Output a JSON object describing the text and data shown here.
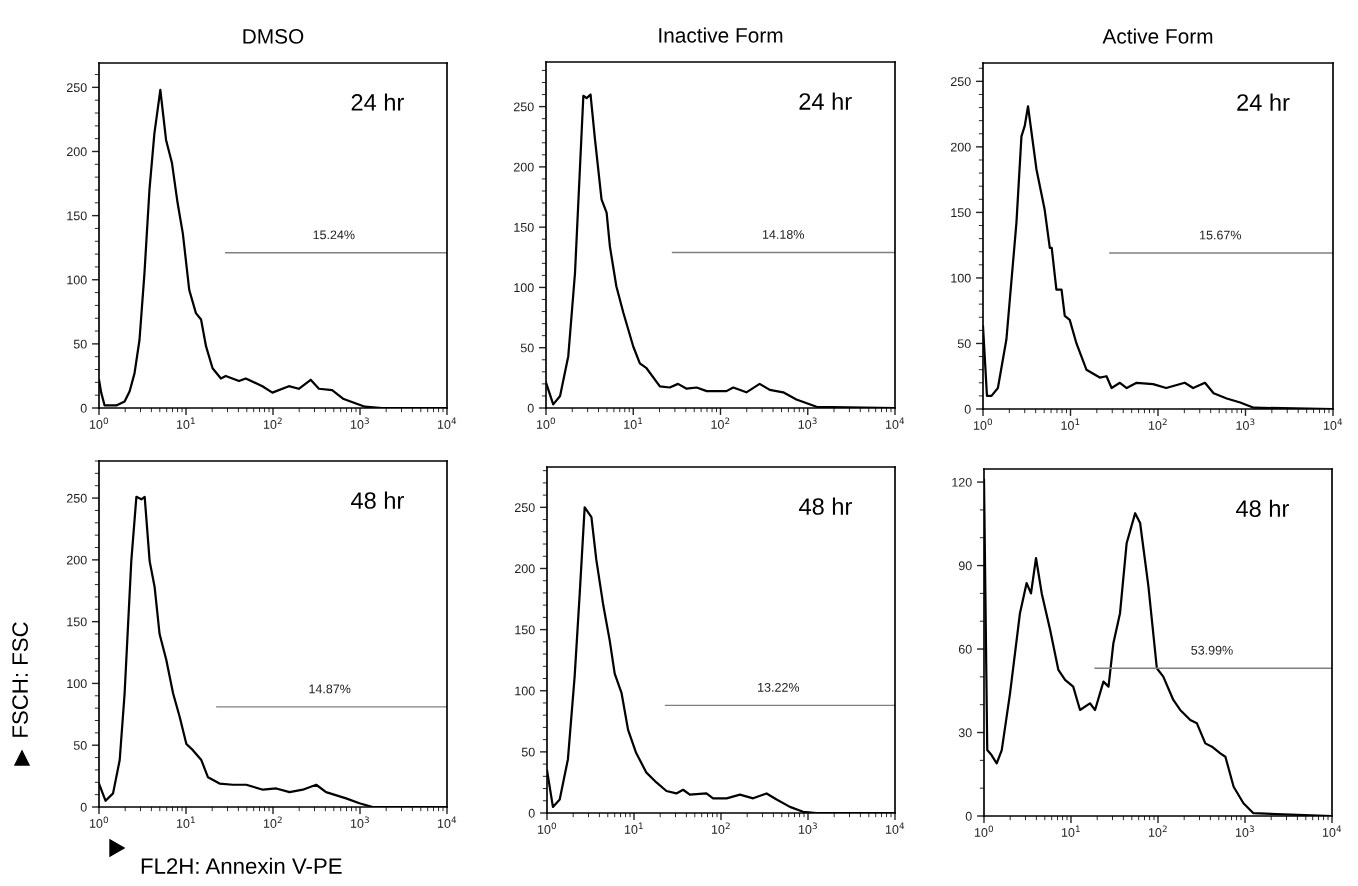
{
  "chart_data": [
    {
      "type": "line",
      "title": "DMSO",
      "log": "x",
      "xlim": [
        1,
        10000
      ],
      "xticks": [
        {
          "value": 1,
          "label": "10$^{0}$"
        },
        {
          "value": 10,
          "label": "10$^{1}$"
        },
        {
          "value": 100,
          "label": "10$^{2}$"
        },
        {
          "value": 1000,
          "label": "10$^{3}$"
        },
        {
          "value": 10000,
          "label": "10$^{4}$"
        }
      ],
      "ylim": [
        0,
        269
      ],
      "yticks": [
        0,
        50,
        100,
        150,
        200,
        250
      ],
      "grid": false,
      "series": [
        {
          "color": "#000000",
          "x": [
            1,
            1.06,
            1.16,
            1.58,
            1.97,
            2.25,
            2.56,
            2.92,
            3.33,
            3.8,
            4.33,
            5.07,
            5.9,
            6.9,
            8.0,
            9.2,
            10.9,
            13.0,
            14.9,
            17.0,
            20.2,
            25.2,
            28.6,
            40.7,
            48.6,
            75.6,
            98.4,
            152,
            198,
            271,
            337,
            478,
            649,
            1140,
            1790,
            10000
          ],
          "values": [
            22,
            12,
            2,
            2,
            5,
            13,
            27,
            53,
            105,
            170,
            214,
            248,
            209,
            191,
            160,
            136,
            92,
            74,
            69,
            48,
            31,
            23,
            25,
            21,
            23,
            17,
            12,
            17,
            15,
            22,
            15,
            14,
            7,
            1,
            0,
            0
          ]
        },
        {
          "type": "line",
          "color": "#808080",
          "x": [
            28.6,
            10000
          ],
          "values": [
            121,
            121
          ]
        }
      ],
      "annotations": [
        "24 hr",
        {
          "text": "15.24%",
          "x": 500,
          "y": 121
        }
      ]
    },
    {
      "type": "line",
      "title": "Inactive Form",
      "log": "x",
      "xlim": [
        1,
        10000
      ],
      "xticks": [
        {
          "value": 1,
          "label": "10$^{0}$"
        },
        {
          "value": 10,
          "label": "10$^{1}$"
        },
        {
          "value": 100,
          "label": "10$^{2}$"
        },
        {
          "value": 1000,
          "label": "10$^{3}$"
        },
        {
          "value": 10000,
          "label": "10$^{4}$"
        }
      ],
      "ylim": [
        0,
        287
      ],
      "yticks": [
        0,
        50,
        100,
        150,
        200,
        250
      ],
      "grid": false,
      "series": [
        {
          "color": "#000000",
          "x": [
            1,
            1.21,
            1.45,
            1.8,
            2.15,
            2.68,
            2.92,
            3.24,
            3.64,
            4.33,
            4.95,
            5.4,
            6.4,
            7.7,
            10.0,
            11.9,
            14.2,
            20.2,
            26.2,
            32.6,
            40.9,
            53.3,
            69.5,
            117,
            140,
            198,
            281,
            367,
            523,
            741,
            1260,
            10000
          ],
          "values": [
            21,
            3,
            10,
            43,
            112,
            259,
            257,
            260,
            223,
            173,
            162,
            134,
            101,
            79,
            51,
            37,
            33,
            18,
            17,
            20,
            16,
            17,
            14,
            14,
            17,
            13,
            20,
            15,
            13,
            7,
            1,
            0
          ]
        },
        {
          "type": "line",
          "color": "#808080",
          "x": [
            28.2,
            10000
          ],
          "values": [
            129,
            129
          ]
        }
      ],
      "annotations": [
        "24 hr",
        {
          "text": "14.18%",
          "x": 523,
          "y": 129
        }
      ]
    },
    {
      "type": "line",
      "title": "Active Form",
      "log": "x",
      "xlim": [
        1,
        10000
      ],
      "xticks": [
        {
          "value": 1,
          "label": "10$^{0}$"
        },
        {
          "value": 10,
          "label": "10$^{1}$"
        },
        {
          "value": 100,
          "label": "10$^{2}$"
        },
        {
          "value": 1000,
          "label": "10$^{3}$"
        },
        {
          "value": 10000,
          "label": "10$^{4}$"
        }
      ],
      "ylim": [
        0,
        264
      ],
      "yticks": [
        0,
        50,
        100,
        150,
        200,
        250
      ],
      "grid": false,
      "series": [
        {
          "color": "#000000",
          "x": [
            1,
            1.11,
            1.25,
            1.48,
            1.85,
            2.41,
            2.75,
            3.0,
            3.27,
            4.08,
            5.07,
            5.8,
            6.1,
            6.9,
            7.9,
            8.6,
            9.8,
            11.7,
            15.2,
            21.6,
            25.8,
            29.5,
            36.7,
            43.9,
            56.9,
            88,
            124,
            202,
            252,
            344,
            432,
            610,
            870,
            1240,
            10000
          ],
          "values": [
            63,
            10,
            10,
            16,
            53,
            142,
            208,
            216,
            231,
            183,
            152,
            123,
            123,
            91,
            91,
            71,
            68,
            50,
            30,
            24,
            25,
            16,
            20,
            16,
            20,
            19,
            16,
            20,
            16,
            20,
            12,
            8,
            5,
            1,
            0
          ]
        },
        {
          "type": "line",
          "color": "#808080",
          "x": [
            28.2,
            10000
          ],
          "values": [
            119,
            119
          ]
        }
      ],
      "annotations": [
        "24 hr",
        {
          "text": "15.67%",
          "x": 515,
          "y": 119
        }
      ]
    },
    {
      "type": "line",
      "xlabel": "FL2H: Annexin V-PE",
      "ylabel": "FSCH: FSC",
      "log": "x",
      "xlim": [
        1,
        10000
      ],
      "xticks": [
        {
          "value": 1,
          "label": "10$^{0}$"
        },
        {
          "value": 10,
          "label": "10$^{1}$"
        },
        {
          "value": 100,
          "label": "10$^{2}$"
        },
        {
          "value": 1000,
          "label": "10$^{3}$"
        },
        {
          "value": 10000,
          "label": "10$^{4}$"
        }
      ],
      "ylim": [
        0,
        280
      ],
      "yticks": [
        0,
        50,
        100,
        150,
        200,
        250
      ],
      "grid": false,
      "series": [
        {
          "color": "#000000",
          "x": [
            1,
            1.19,
            1.45,
            1.73,
            1.97,
            2.35,
            2.69,
            3.07,
            3.35,
            3.82,
            4.36,
            4.97,
            5.94,
            7.1,
            8.45,
            10.1,
            12.0,
            15.0,
            17.9,
            24.3,
            34.6,
            49.3,
            76.6,
            109,
            155,
            220,
            314,
            407,
            692,
            984,
            1400,
            10000
          ],
          "values": [
            19,
            5,
            11,
            38,
            92,
            199,
            251,
            249,
            251,
            199,
            178,
            140,
            119,
            92,
            73,
            51,
            46,
            38,
            24,
            19,
            18,
            18,
            14,
            15,
            12,
            14,
            18,
            12,
            7,
            3,
            0,
            0
          ]
        },
        {
          "type": "line",
          "color": "#808080",
          "x": [
            22.6,
            10000
          ],
          "values": [
            81,
            81
          ]
        }
      ],
      "annotations": [
        "48 hr",
        {
          "text": "14.87%",
          "x": 448,
          "y": 81
        }
      ]
    },
    {
      "type": "line",
      "log": "x",
      "xlim": [
        1,
        10000
      ],
      "xticks": [
        {
          "value": 1,
          "label": "10$^{0}$"
        },
        {
          "value": 10,
          "label": "10$^{1}$"
        },
        {
          "value": 100,
          "label": "10$^{2}$"
        },
        {
          "value": 1000,
          "label": "10$^{3}$"
        },
        {
          "value": 10000,
          "label": "10$^{4}$"
        }
      ],
      "ylim": [
        0,
        283
      ],
      "yticks": [
        0,
        50,
        100,
        150,
        200,
        250
      ],
      "grid": false,
      "series": [
        {
          "color": "#000000",
          "x": [
            1,
            1.17,
            1.4,
            1.74,
            2.08,
            2.38,
            2.71,
            3.24,
            3.69,
            4.41,
            5.26,
            6.0,
            7.2,
            8.55,
            10.6,
            13.9,
            18.1,
            23.6,
            30.7,
            36.7,
            43.8,
            68,
            81,
            116,
            165,
            234,
            334,
            436,
            620,
            877,
            1250,
            10000
          ],
          "values": [
            35,
            5,
            11,
            44,
            112,
            180,
            250,
            242,
            207,
            171,
            141,
            114,
            98,
            68,
            49,
            33,
            25,
            18,
            16,
            19,
            15,
            16,
            12,
            12,
            15,
            12,
            16,
            11,
            5,
            1,
            0,
            0
          ]
        },
        {
          "type": "line",
          "color": "#808080",
          "x": [
            23.0,
            10000
          ],
          "values": [
            88,
            88
          ]
        }
      ],
      "annotations": [
        "48 hr",
        {
          "text": "13.22%",
          "x": 456,
          "y": 88
        }
      ]
    },
    {
      "type": "line",
      "log": "x",
      "xlim": [
        1,
        10000
      ],
      "xticks": [
        {
          "value": 1,
          "label": "10$^{0}$"
        },
        {
          "value": 10,
          "label": "10$^{1}$"
        },
        {
          "value": 100,
          "label": "10$^{2}$"
        },
        {
          "value": 1000,
          "label": "10$^{3}$"
        },
        {
          "value": 10000,
          "label": "10$^{4}$"
        }
      ],
      "ylim": [
        0,
        124.7
      ],
      "yticks": [
        0,
        30,
        60,
        90,
        120
      ],
      "grid": false,
      "series": [
        {
          "color": "#000000",
          "x": [
            1,
            1.09,
            1.22,
            1.4,
            1.6,
            1.99,
            2.59,
            3.09,
            3.47,
            3.96,
            4.61,
            5.75,
            7.16,
            8.55,
            10.6,
            12.7,
            16.5,
            18.9,
            23.6,
            27.0,
            30.7,
            36.6,
            43.6,
            54.6,
            62.3,
            77.6,
            97,
            115,
            150,
            180,
            235,
            280,
            350,
            417,
            520,
            595,
            740,
            960,
            1250,
            10000
          ],
          "values": [
            120.8,
            23.7,
            21.9,
            18.9,
            23.7,
            44,
            72.9,
            83.7,
            80,
            92.7,
            80,
            66.9,
            52.5,
            48.9,
            46.5,
            38.1,
            40.5,
            38.1,
            48.3,
            46.5,
            62.1,
            72.9,
            98,
            108.8,
            105.3,
            82.5,
            53.1,
            50.1,
            41.7,
            38.1,
            34.5,
            33.3,
            26.1,
            24.9,
            22.5,
            21.3,
            10.5,
            4.6,
            1,
            0
          ]
        },
        {
          "type": "line",
          "color": "#808080",
          "x": [
            18.9,
            10000
          ],
          "values": [
            53.1,
            53.1
          ]
        }
      ],
      "annotations": [
        "48 hr",
        {
          "text": "53.99%",
          "x": 417,
          "y": 53.1
        }
      ]
    }
  ]
}
